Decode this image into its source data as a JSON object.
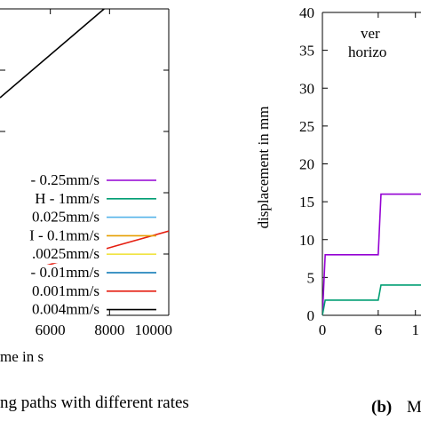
{
  "chart_data": [
    {
      "type": "line",
      "title": "",
      "xlabel": "me in s",
      "ylabel": "",
      "xlim": [
        4300,
        10000
      ],
      "ylim": [
        0,
        100
      ],
      "x_ticks": [
        "6000",
        "8000",
        "10000"
      ],
      "grid": false,
      "legend_position": "right",
      "caption": "ng paths with different rates",
      "series": [
        {
          "name": "- 0.25mm/s",
          "color": "#9400d3",
          "x": [],
          "y": []
        },
        {
          "name": "H - 1mm/s",
          "color": "#009e73",
          "x": [],
          "y": []
        },
        {
          "name": "0.025mm/s",
          "color": "#56b4e9",
          "x": [],
          "y": []
        },
        {
          "name": "I - 0.1mm/s",
          "color": "#e69f00",
          "x": [],
          "y": []
        },
        {
          "name": ".0025mm/s",
          "color": "#f0e442",
          "x": [],
          "y": []
        },
        {
          "name": "- 0.01mm/s",
          "color": "#0072b2",
          "x": [],
          "y": []
        },
        {
          "name": "0.001mm/s",
          "color": "#e51e10",
          "x": [
            4300,
            10000
          ],
          "y": [
            12,
            27.5
          ]
        },
        {
          "name": "0.004mm/s",
          "color": "#000000",
          "x": [
            4300,
            10000
          ],
          "y": [
            71,
            118
          ]
        }
      ]
    },
    {
      "type": "line",
      "title": "",
      "xlabel": "",
      "ylabel": "displacement in mm",
      "xlim": [
        0,
        10.6
      ],
      "ylim": [
        0,
        40
      ],
      "y_ticks": [
        "0",
        "5",
        "10",
        "15",
        "20",
        "25",
        "30",
        "35",
        "40"
      ],
      "x_ticks": [
        "0",
        "6",
        "1"
      ],
      "grid": false,
      "legend_position": "top-right",
      "legend_fragments": [
        "ver",
        "horizo"
      ],
      "caption_label": "(b)",
      "caption_text": "M",
      "series": [
        {
          "name": "",
          "color": "#9400d3",
          "x": [
            0,
            0.3,
            6,
            6.3,
            10.6
          ],
          "y": [
            0,
            8,
            8,
            16,
            16
          ]
        },
        {
          "name": "",
          "color": "#009e73",
          "x": [
            0,
            0.3,
            6,
            6.3,
            10.6
          ],
          "y": [
            0,
            2,
            2,
            4,
            4
          ]
        }
      ]
    }
  ]
}
